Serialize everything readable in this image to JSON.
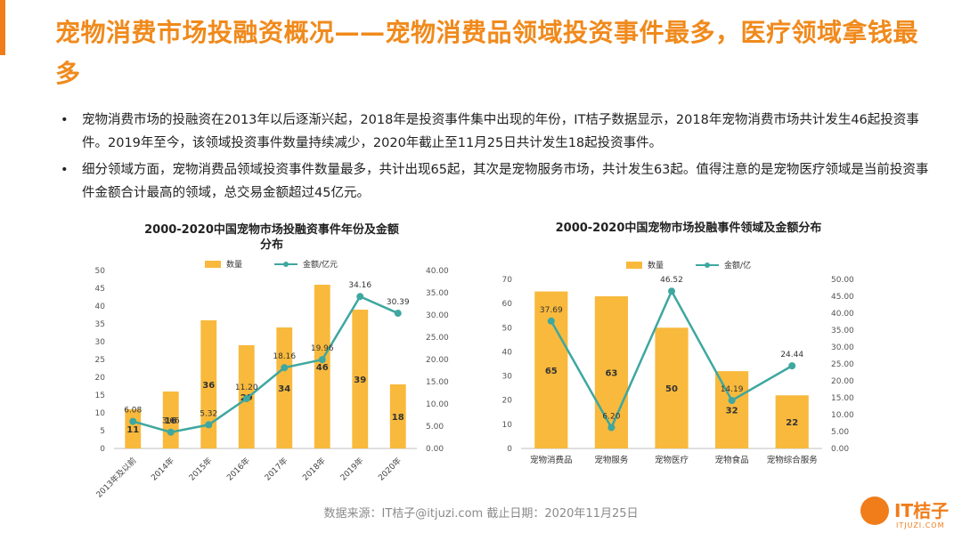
{
  "header": {
    "title": "宠物消费市场投融资概况——宠物消费品领域投资事件最多，医疗领域拿钱最多"
  },
  "bullets": [
    "宠物消费市场的投融资在2013年以后逐渐兴起，2018年是投资事件集中出现的年份，IT桔子数据显示，2018年宠物消费市场共计发生46起投资事件。2019年至今，该领域投资事件数量持续减少，2020年截止至11月25日共计发生18起投资事件。",
    "细分领域方面，宠物消费品领域投资事件数量最多，共计出现65起，其次是宠物服务市场，共计发生63起。值得注意的是宠物医疗领域是当前投资事件金额合计最高的领域，总交易金额超过45亿元。"
  ],
  "bullet_symbol": "•",
  "colors": {
    "bar": "#f8b93c",
    "line": "#3ea7a0",
    "title": "#f08a1c"
  },
  "chart_data": [
    {
      "type": "bar+line",
      "title": "2000-2020中国宠物市场投融资事件年份及金额分布",
      "categories": [
        "2013年及以前",
        "2014年",
        "2015年",
        "2016年",
        "2017年",
        "2018年",
        "2019年",
        "2020年"
      ],
      "series": [
        {
          "name": "数量",
          "type": "bar",
          "axis": "left",
          "values": [
            11,
            16,
            36,
            29,
            34,
            46,
            39,
            18
          ]
        },
        {
          "name": "金额/亿元",
          "type": "line",
          "axis": "right",
          "values": [
            6.08,
            3.66,
            5.32,
            11.2,
            18.16,
            19.96,
            34.16,
            30.39
          ],
          "labels": [
            "6.08",
            "3.66",
            "5.32",
            "11.20",
            "18.16",
            "19.96",
            "34.16",
            "30.39"
          ]
        }
      ],
      "ylim_left": [
        0,
        50
      ],
      "yticks_left": [
        "0",
        "5",
        "10",
        "15",
        "20",
        "25",
        "30",
        "35",
        "40",
        "45",
        "50"
      ],
      "ylim_right": [
        0,
        40
      ],
      "yticks_right": [
        "0.00",
        "5.00",
        "10.00",
        "15.00",
        "20.00",
        "25.00",
        "30.00",
        "35.00",
        "40.00"
      ],
      "legend_position": "top"
    },
    {
      "type": "bar+line",
      "title": "2000-2020中国宠物市场投融事件领域及金额分布",
      "categories": [
        "宠物消费品",
        "宠物服务",
        "宠物医疗",
        "宠物食品",
        "宠物综合服务"
      ],
      "series": [
        {
          "name": "数量",
          "type": "bar",
          "axis": "left",
          "values": [
            65,
            63,
            50,
            32,
            22
          ]
        },
        {
          "name": "金额/亿",
          "type": "line",
          "axis": "right",
          "values": [
            37.69,
            6.2,
            46.52,
            14.19,
            24.44
          ],
          "labels": [
            "37.69",
            "6.20",
            "46.52",
            "14.19",
            "24.44"
          ]
        }
      ],
      "ylim_left": [
        0,
        70
      ],
      "yticks_left": [
        "0",
        "10",
        "20",
        "30",
        "40",
        "50",
        "60",
        "70"
      ],
      "ylim_right": [
        0,
        50
      ],
      "yticks_right": [
        "0.00",
        "5.00",
        "10.00",
        "15.00",
        "20.00",
        "25.00",
        "30.00",
        "35.00",
        "40.00",
        "45.00",
        "50.00"
      ],
      "legend_position": "top"
    }
  ],
  "footer": {
    "source": "数据来源：IT桔子@itjuzi.com  截止日期：2020年11月25日"
  },
  "logo": {
    "name": "IT桔子",
    "sub": "ITJUZI.COM"
  }
}
